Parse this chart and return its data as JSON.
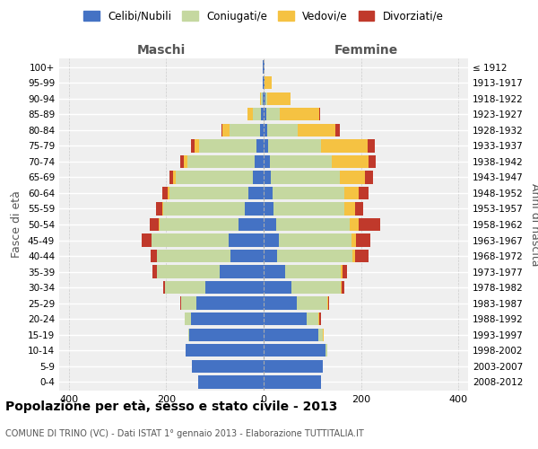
{
  "age_groups": [
    "0-4",
    "5-9",
    "10-14",
    "15-19",
    "20-24",
    "25-29",
    "30-34",
    "35-39",
    "40-44",
    "45-49",
    "50-54",
    "55-59",
    "60-64",
    "65-69",
    "70-74",
    "75-79",
    "80-84",
    "85-89",
    "90-94",
    "95-99",
    "100+"
  ],
  "birth_years": [
    "2008-2012",
    "2003-2007",
    "1998-2002",
    "1993-1997",
    "1988-1992",
    "1983-1987",
    "1978-1982",
    "1973-1977",
    "1968-1972",
    "1963-1967",
    "1958-1962",
    "1953-1957",
    "1948-1952",
    "1943-1947",
    "1938-1942",
    "1933-1937",
    "1928-1932",
    "1923-1927",
    "1918-1922",
    "1913-1917",
    "≤ 1912"
  ],
  "males": {
    "celibe": [
      135,
      148,
      160,
      152,
      150,
      138,
      120,
      90,
      68,
      72,
      52,
      38,
      32,
      22,
      18,
      14,
      8,
      5,
      2,
      1,
      1
    ],
    "coniugato": [
      0,
      0,
      0,
      2,
      12,
      32,
      82,
      130,
      152,
      158,
      162,
      168,
      162,
      158,
      138,
      118,
      62,
      18,
      4,
      0,
      0
    ],
    "vedovo": [
      0,
      0,
      0,
      0,
      0,
      0,
      0,
      0,
      0,
      1,
      2,
      3,
      4,
      6,
      8,
      10,
      14,
      10,
      2,
      0,
      0
    ],
    "divorziato": [
      0,
      0,
      0,
      0,
      1,
      2,
      4,
      8,
      12,
      20,
      18,
      12,
      10,
      8,
      8,
      8,
      3,
      1,
      0,
      0,
      0
    ]
  },
  "females": {
    "nubile": [
      118,
      122,
      128,
      112,
      88,
      68,
      58,
      44,
      28,
      32,
      25,
      20,
      18,
      15,
      12,
      10,
      8,
      6,
      3,
      2,
      1
    ],
    "coniugata": [
      0,
      0,
      2,
      10,
      25,
      62,
      100,
      115,
      155,
      148,
      152,
      145,
      148,
      142,
      128,
      108,
      62,
      28,
      5,
      0,
      0
    ],
    "vedova": [
      0,
      0,
      0,
      1,
      2,
      2,
      2,
      3,
      5,
      10,
      18,
      22,
      30,
      52,
      75,
      95,
      78,
      80,
      48,
      15,
      0
    ],
    "divorziata": [
      0,
      0,
      0,
      1,
      2,
      3,
      5,
      10,
      28,
      30,
      45,
      18,
      20,
      15,
      15,
      15,
      8,
      2,
      0,
      0,
      0
    ]
  },
  "colors": {
    "celibe": "#4472C4",
    "coniugato": "#C5D8A0",
    "vedovo": "#F5C242",
    "divorziato": "#C0392B"
  },
  "xlim": 420,
  "title": "Popolazione per età, sesso e stato civile - 2013",
  "subtitle": "COMUNE DI TRINO (VC) - Dati ISTAT 1° gennaio 2013 - Elaborazione TUTTITALIA.IT",
  "ylabel_left": "Fasce di età",
  "ylabel_right": "Anni di nascita",
  "xlabel_left": "Maschi",
  "xlabel_right": "Femmine",
  "bg_color": "#efefef",
  "legend_labels": [
    "Celibi/Nubili",
    "Coniugati/e",
    "Vedovi/e",
    "Divorziati/e"
  ]
}
